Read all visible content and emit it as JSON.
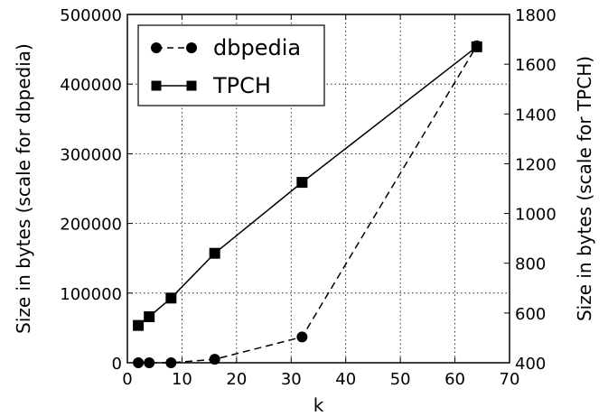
{
  "chart_data": {
    "type": "line",
    "xlabel": "k",
    "ylabel": "Size in bytes (scale for dbpedia)",
    "y2label": "Size in bytes (scale for TPCH)",
    "xlim": [
      0,
      70
    ],
    "ylim": [
      0,
      500000
    ],
    "y2lim": [
      400,
      1800
    ],
    "xticks": [
      "0",
      "10",
      "20",
      "30",
      "40",
      "50",
      "60",
      "70"
    ],
    "yticks": [
      "0",
      "100000",
      "200000",
      "300000",
      "400000",
      "500000"
    ],
    "y2ticks": [
      "400",
      "600",
      "800",
      "1000",
      "1200",
      "1400",
      "1600",
      "1800"
    ],
    "grid": true,
    "legend_position": "top-left",
    "series": [
      {
        "name": "dbpedia",
        "axis": "left",
        "marker": "circle",
        "line_style": "dashed",
        "color": "#000000",
        "x": [
          2,
          4,
          8,
          16,
          32,
          64
        ],
        "values": [
          0,
          0,
          0,
          5000,
          37000,
          455000
        ]
      },
      {
        "name": "TPCH",
        "axis": "right",
        "marker": "square",
        "line_style": "solid",
        "color": "#000000",
        "x": [
          2,
          4,
          8,
          16,
          32,
          64
        ],
        "values": [
          550,
          585,
          660,
          840,
          1125,
          1670
        ]
      }
    ]
  }
}
